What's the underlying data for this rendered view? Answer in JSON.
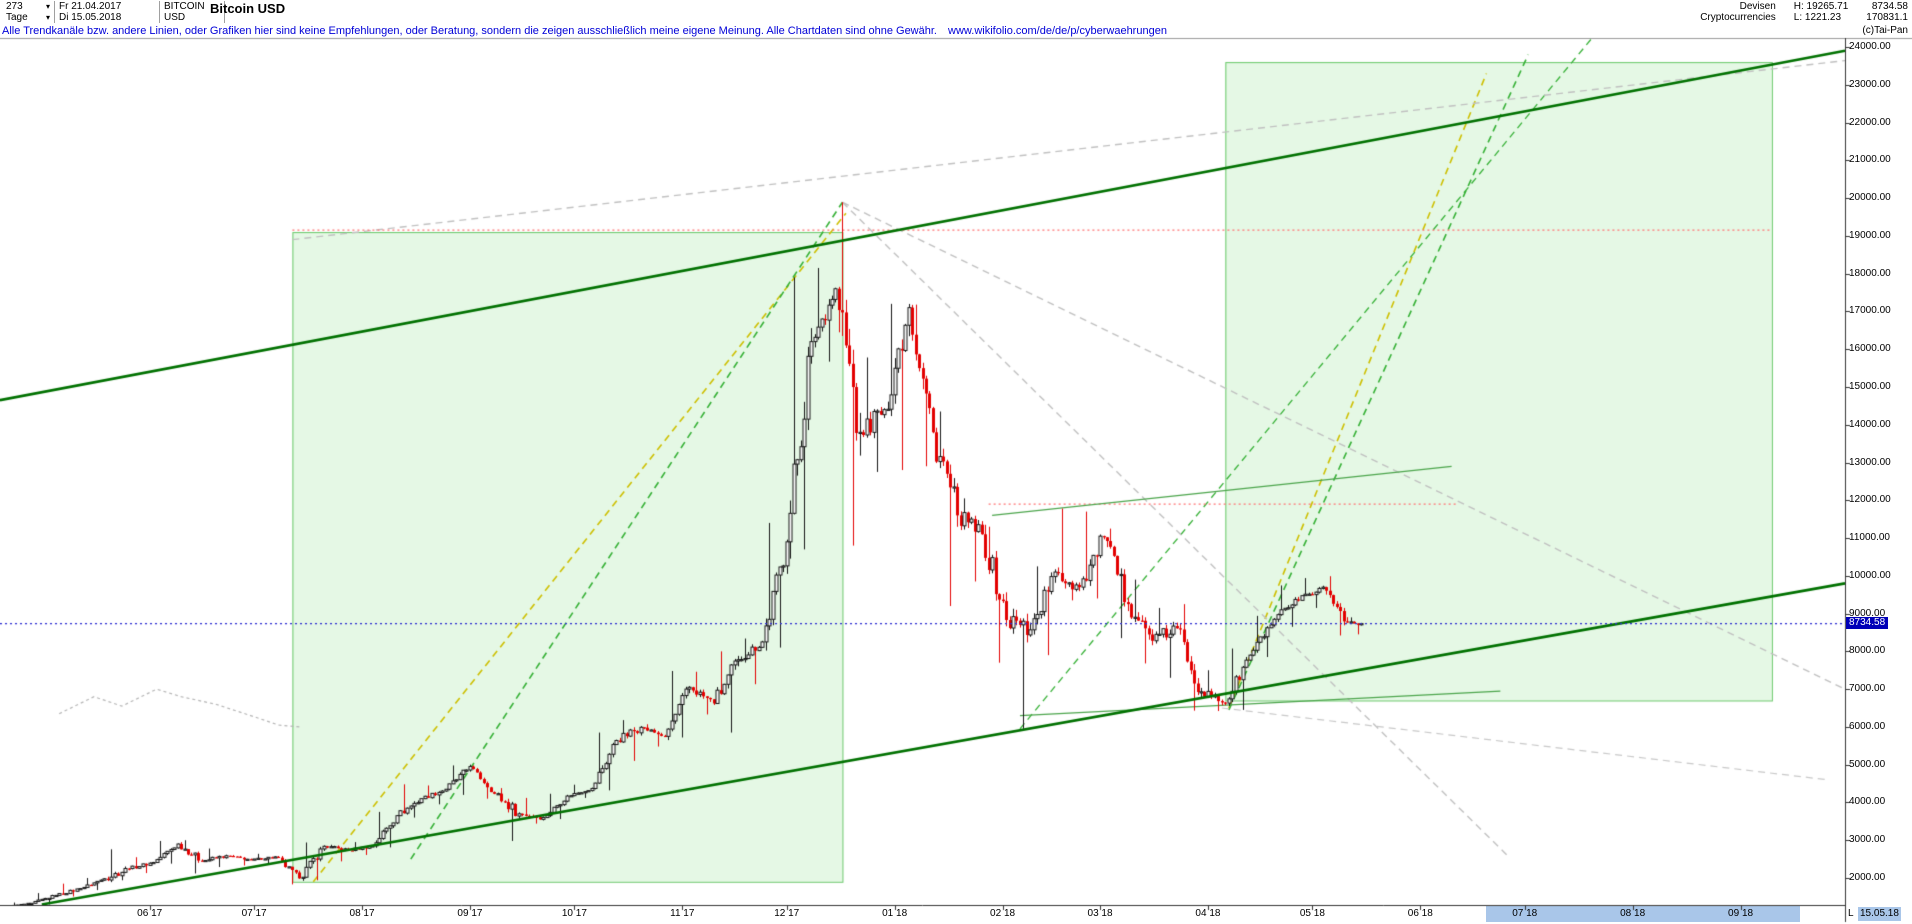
{
  "header": {
    "bars_count": "273",
    "start_date": "Fr 21.04.2017",
    "symbol": "BITCOIN",
    "symbol_currency": "USD",
    "period": "Tage",
    "end_date": "Di 15.05.2018",
    "title": "Bitcoin USD",
    "category_line1": "Devisen",
    "category_line2": "Cryptocurrencies",
    "high_label": "H: 19265.71",
    "low_label": "L: 1221.23",
    "last_price": "8734.58",
    "volume": "170831.1",
    "copyright": "(c)Tai-Pan"
  },
  "disclaimer": {
    "text": "Alle Trendkanäle bzw. andere Linien, oder Grafiken hier sind keine Empfehlungen, oder Beratung, sondern die zeigen ausschließlich meine eigene Meinung. Alle Chartdaten sind ohne Gewähr.",
    "link": "www.wikifolio.com/de/de/p/cyberwaehrungen"
  },
  "price_axis": {
    "badge": {
      "value": "8734.58",
      "bg": "#0000b8",
      "fg": "#ffffff"
    }
  },
  "time_axis": {
    "months": [
      {
        "label": "06 17",
        "date": "2017-06-01"
      },
      {
        "label": "07 17",
        "date": "2017-07-01"
      },
      {
        "label": "08 17",
        "date": "2017-08-01"
      },
      {
        "label": "09 17",
        "date": "2017-09-01"
      },
      {
        "label": "10 17",
        "date": "2017-10-01"
      },
      {
        "label": "11 17",
        "date": "2017-11-01"
      },
      {
        "label": "12 17",
        "date": "2017-12-01"
      },
      {
        "label": "01 18",
        "date": "2018-01-01"
      },
      {
        "label": "02 18",
        "date": "2018-02-01"
      },
      {
        "label": "03 18",
        "date": "2018-03-01"
      },
      {
        "label": "04 18",
        "date": "2018-04-01"
      },
      {
        "label": "05 18",
        "date": "2018-05-01"
      },
      {
        "label": "06 18",
        "date": "2018-06-01"
      },
      {
        "label": "07 18",
        "date": "2018-07-01"
      },
      {
        "label": "08 18",
        "date": "2018-08-01"
      },
      {
        "label": "09 18",
        "date": "2018-09-01"
      }
    ],
    "highlight": {
      "from": "2018-06-20",
      "to": "2018-09-18",
      "color": "#a9c6e9"
    },
    "last_label": {
      "prefix": "L",
      "date_label": "15.05.18"
    }
  },
  "chart_data": {
    "type": "candlestick",
    "title": "Bitcoin USD",
    "unit": "USD",
    "period": "daily",
    "x_range": [
      "2017-04-19",
      "2018-10-01"
    ],
    "y_axis": {
      "tick_min": 2000,
      "tick_max": 24000,
      "tick_step": 1000,
      "label_decimals": 2
    },
    "last_close": 8734.58,
    "high_shown": 19265.71,
    "low_shown": 1221.23,
    "colors": {
      "up_fill": "#ffffff",
      "up_stroke": "#151515",
      "down": "#e30000"
    },
    "weekly_keyframes": [
      [
        "2017-04-21",
        1242,
        1260,
        1221
      ],
      [
        "2017-04-28",
        1330,
        1350,
        1225
      ],
      [
        "2017-05-05",
        1540,
        1600,
        1300
      ],
      [
        "2017-05-12",
        1720,
        1850,
        1510
      ],
      [
        "2017-05-19",
        1980,
        2000,
        1680
      ],
      [
        "2017-05-26",
        2250,
        2760,
        1940
      ],
      [
        "2017-06-02",
        2410,
        2550,
        2130
      ],
      [
        "2017-06-09",
        2900,
        2980,
        2380
      ],
      [
        "2017-06-16",
        2450,
        3000,
        2120
      ],
      [
        "2017-06-23",
        2590,
        2780,
        2290
      ],
      [
        "2017-06-30",
        2480,
        2610,
        2330
      ],
      [
        "2017-07-07",
        2560,
        2640,
        2380
      ],
      [
        "2017-07-14",
        1990,
        2580,
        1830
      ],
      [
        "2017-07-21",
        2840,
        2940,
        1940
      ],
      [
        "2017-07-28",
        2730,
        2880,
        2440
      ],
      [
        "2017-08-04",
        2850,
        2950,
        2610
      ],
      [
        "2017-08-11",
        3650,
        3750,
        2810
      ],
      [
        "2017-08-18",
        4100,
        4480,
        3600
      ],
      [
        "2017-08-25",
        4350,
        4450,
        3950
      ],
      [
        "2017-09-01",
        4950,
        4980,
        4200
      ],
      [
        "2017-09-08",
        4230,
        4700,
        4100
      ],
      [
        "2017-09-15",
        3700,
        4380,
        2980
      ],
      [
        "2017-09-22",
        3600,
        4120,
        3440
      ],
      [
        "2017-09-29",
        4170,
        4230,
        3560
      ],
      [
        "2017-10-06",
        4370,
        4470,
        4120
      ],
      [
        "2017-10-13",
        5640,
        5850,
        4320
      ],
      [
        "2017-10-20",
        5990,
        6180,
        5100
      ],
      [
        "2017-10-27",
        5750,
        6070,
        5480
      ],
      [
        "2017-11-03",
        7050,
        7480,
        5720
      ],
      [
        "2017-11-10",
        6620,
        7460,
        6330
      ],
      [
        "2017-11-17",
        7780,
        8000,
        5850
      ],
      [
        "2017-11-24",
        8250,
        8340,
        7130
      ],
      [
        "2017-12-01",
        10900,
        11400,
        8100
      ],
      [
        "2017-12-08",
        16200,
        17900,
        10700
      ],
      [
        "2017-12-15",
        17600,
        18150,
        15670
      ],
      [
        "2017-12-22",
        13800,
        19890,
        10800
      ],
      [
        "2017-12-29",
        14400,
        15780,
        12750
      ],
      [
        "2018-01-05",
        17100,
        17200,
        12800
      ],
      [
        "2018-01-12",
        13800,
        17180,
        12900
      ],
      [
        "2018-01-19",
        11600,
        14350,
        9200
      ],
      [
        "2018-01-26",
        11100,
        12050,
        9850
      ],
      [
        "2018-02-02",
        8830,
        11300,
        7700
      ],
      [
        "2018-02-09",
        8570,
        9100,
        5950
      ],
      [
        "2018-02-16",
        10100,
        10250,
        7900
      ],
      [
        "2018-02-23",
        9700,
        11780,
        9350
      ],
      [
        "2018-03-02",
        11020,
        11700,
        9400
      ],
      [
        "2018-03-09",
        9250,
        11250,
        8350
      ],
      [
        "2018-03-16",
        8280,
        9900,
        7680
      ],
      [
        "2018-03-23",
        8610,
        9150,
        7300
      ],
      [
        "2018-03-30",
        6930,
        9250,
        6430
      ],
      [
        "2018-04-06",
        6630,
        7500,
        6420
      ],
      [
        "2018-04-13",
        7900,
        8075,
        6450
      ],
      [
        "2018-04-20",
        8850,
        8940,
        7850
      ],
      [
        "2018-04-27",
        9350,
        9745,
        8650
      ],
      [
        "2018-05-04",
        9700,
        9940,
        9150
      ],
      [
        "2018-05-11",
        8780,
        9990,
        8420
      ],
      [
        "2018-05-15",
        8734.58,
        8900,
        8450
      ]
    ],
    "overlays": {
      "boxes": [
        {
          "name": "trend-box-2017",
          "x1": "2017-07-12",
          "x2": "2017-12-17",
          "p_top": 19100,
          "p_bottom": 1900,
          "fill": "rgba(160,230,160,0.28)",
          "stroke": "rgba(80,190,80,0.85)"
        },
        {
          "name": "trend-box-2018",
          "x1": "2018-04-06",
          "x2": "2018-09-10",
          "p_top": 23600,
          "p_bottom": 6700,
          "fill": "rgba(160,230,160,0.28)",
          "stroke": "rgba(80,190,80,0.85)"
        }
      ],
      "lines": [
        {
          "name": "upper-channel",
          "x1": "2017-04-19",
          "p1": 14650,
          "x2": "2018-10-01",
          "p2": 23900,
          "color": "#007100",
          "width": 2.6,
          "style": "solid"
        },
        {
          "name": "lower-channel",
          "x1": "2017-05-01",
          "p1": 1300,
          "x2": "2018-10-01",
          "p2": 9800,
          "color": "#007100",
          "width": 2.6,
          "style": "solid"
        },
        {
          "name": "rally-support-yellow",
          "x1": "2017-07-18",
          "p1": 1900,
          "x2": "2017-12-18",
          "p2": 19600,
          "color": "#cdbf00",
          "width": 1.6,
          "style": "dashed"
        },
        {
          "name": "rally-support-green",
          "x1": "2017-08-15",
          "p1": 2500,
          "x2": "2017-12-17",
          "p2": 19890,
          "color": "#35b035",
          "width": 1.6,
          "style": "dashed"
        },
        {
          "name": "recovery-yellow",
          "x1": "2018-04-07",
          "p1": 6500,
          "x2": "2018-06-20",
          "p2": 23300,
          "color": "#cdbf00",
          "width": 1.6,
          "style": "dashed"
        },
        {
          "name": "recovery-green",
          "x1": "2018-04-07",
          "p1": 6450,
          "x2": "2018-07-02",
          "p2": 23800,
          "color": "#35b035",
          "width": 1.6,
          "style": "dashed"
        },
        {
          "name": "recovery-green-long",
          "x1": "2018-02-06",
          "p1": 5950,
          "x2": "2018-07-20",
          "p2": 24200,
          "color": "#35b035",
          "width": 1.3,
          "style": "dashed"
        },
        {
          "name": "fan-gray-upper",
          "x1": "2017-07-12",
          "p1": 18900,
          "x2": "2018-10-01",
          "p2": 23640,
          "color": "#c0c0c0",
          "width": 1.4,
          "style": "dashed"
        },
        {
          "name": "fan-gray-down-shallow",
          "x1": "2017-12-17",
          "p1": 19890,
          "x2": "2018-10-01",
          "p2": 7000,
          "color": "#c0c0c0",
          "width": 1.4,
          "style": "dashed"
        },
        {
          "name": "fan-gray-down-steep",
          "x1": "2017-12-17",
          "p1": 19890,
          "x2": "2018-06-26",
          "p2": 2600,
          "color": "#c0c0c0",
          "width": 1.4,
          "style": "dashed"
        },
        {
          "name": "gray-low-right",
          "x1": "2018-04-05",
          "p1": 6500,
          "x2": "2018-09-26",
          "p2": 4600,
          "color": "#c8c8c8",
          "width": 1.2,
          "style": "dashed"
        },
        {
          "name": "resistance-top-red",
          "x1": "2017-07-12",
          "p1": 19150,
          "x2": "2018-09-10",
          "p2": 19150,
          "color": "#ff7070",
          "width": 1.2,
          "style": "dotted"
        },
        {
          "name": "resistance-12000-red",
          "x1": "2018-01-28",
          "p1": 11900,
          "x2": "2018-06-12",
          "p2": 11900,
          "color": "#ff7070",
          "width": 1.2,
          "style": "dotted"
        },
        {
          "name": "minor-resistance-green",
          "x1": "2018-01-29",
          "p1": 11600,
          "x2": "2018-06-10",
          "p2": 12900,
          "color": "#4aa44a",
          "width": 1.3,
          "style": "solid"
        },
        {
          "name": "minor-support-green",
          "x1": "2018-02-06",
          "p1": 6300,
          "x2": "2018-06-24",
          "p2": 6950,
          "color": "#4aa44a",
          "width": 1.3,
          "style": "solid"
        }
      ],
      "polyline": {
        "name": "faint-history-line",
        "color": "#b5b5b5",
        "width": 1.2,
        "style": "dashed",
        "points": [
          [
            "2017-05-06",
            6350
          ],
          [
            "2017-05-16",
            6800
          ],
          [
            "2017-05-24",
            6550
          ],
          [
            "2017-06-03",
            7000
          ],
          [
            "2017-06-10",
            6800
          ],
          [
            "2017-06-20",
            6600
          ],
          [
            "2017-06-30",
            6300
          ],
          [
            "2017-07-08",
            6050
          ],
          [
            "2017-07-14",
            6000
          ]
        ]
      },
      "current_price_line": {
        "price": 8734.58,
        "color": "#2a2ad0",
        "width": 1.2,
        "style": "dotted"
      }
    }
  }
}
